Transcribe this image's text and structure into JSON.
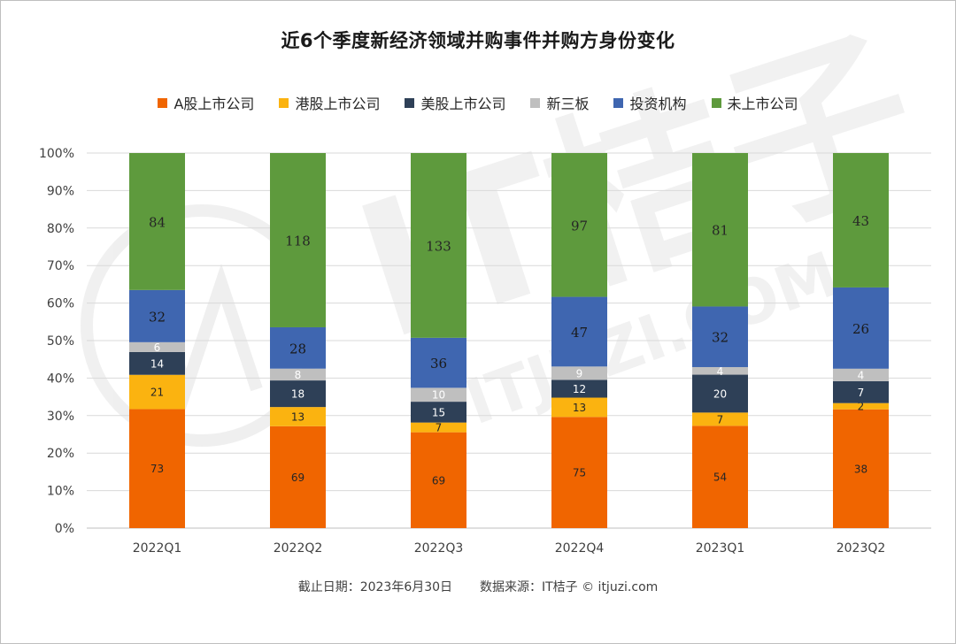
{
  "title": "近6个季度新经济领域并购事件并购方身份变化",
  "footer": {
    "date_label": "截止日期：2023年6月30日",
    "source_label": "数据来源：IT桔子 © itjuzi.com"
  },
  "watermark": {
    "text_main": "IT桔子",
    "text_url": "ITJUZI.COM"
  },
  "chart_data": {
    "type": "bar",
    "stacked": true,
    "normalized": true,
    "categories": [
      "2022Q1",
      "2022Q2",
      "2022Q3",
      "2022Q4",
      "2023Q1",
      "2023Q2"
    ],
    "series": [
      {
        "name": "A股上市公司",
        "color": "#f06500",
        "values": [
          73,
          69,
          69,
          75,
          54,
          38
        ]
      },
      {
        "name": "港股上市公司",
        "color": "#fbb310",
        "values": [
          21,
          13,
          7,
          13,
          7,
          2
        ]
      },
      {
        "name": "美股上市公司",
        "color": "#2e4057",
        "values": [
          14,
          18,
          15,
          12,
          20,
          7
        ]
      },
      {
        "name": "新三板",
        "color": "#bfbfbf",
        "values": [
          6,
          8,
          10,
          9,
          4,
          4
        ]
      },
      {
        "name": "投资机构",
        "color": "#3f66b0",
        "values": [
          32,
          28,
          36,
          47,
          32,
          26
        ]
      },
      {
        "name": "未上市公司",
        "color": "#5e9a3d",
        "values": [
          84,
          118,
          133,
          97,
          81,
          43
        ]
      }
    ],
    "y_ticks": [
      "0%",
      "10%",
      "20%",
      "30%",
      "40%",
      "50%",
      "60%",
      "70%",
      "80%",
      "90%",
      "100%"
    ],
    "ylim": [
      0,
      100
    ],
    "grid": true,
    "legend_position": "top"
  }
}
